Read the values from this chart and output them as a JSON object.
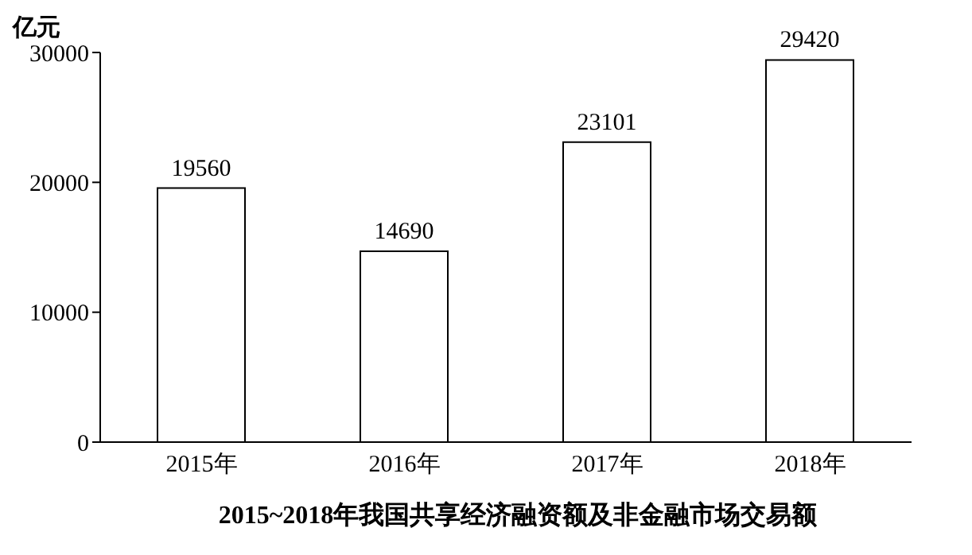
{
  "chart_data": {
    "type": "bar",
    "title": "2015~2018年我国共享经济融资额及非金融市场交易额",
    "ylabel": "亿元",
    "categories": [
      "2015年",
      "2016年",
      "2017年",
      "2018年"
    ],
    "values": [
      19560,
      14690,
      23101,
      29420
    ],
    "color": "#ffffff",
    "ylim": [
      0,
      30000
    ],
    "yticks": [
      0,
      10000,
      20000,
      30000
    ],
    "data_labels": true,
    "grid": false,
    "legend": false
  }
}
